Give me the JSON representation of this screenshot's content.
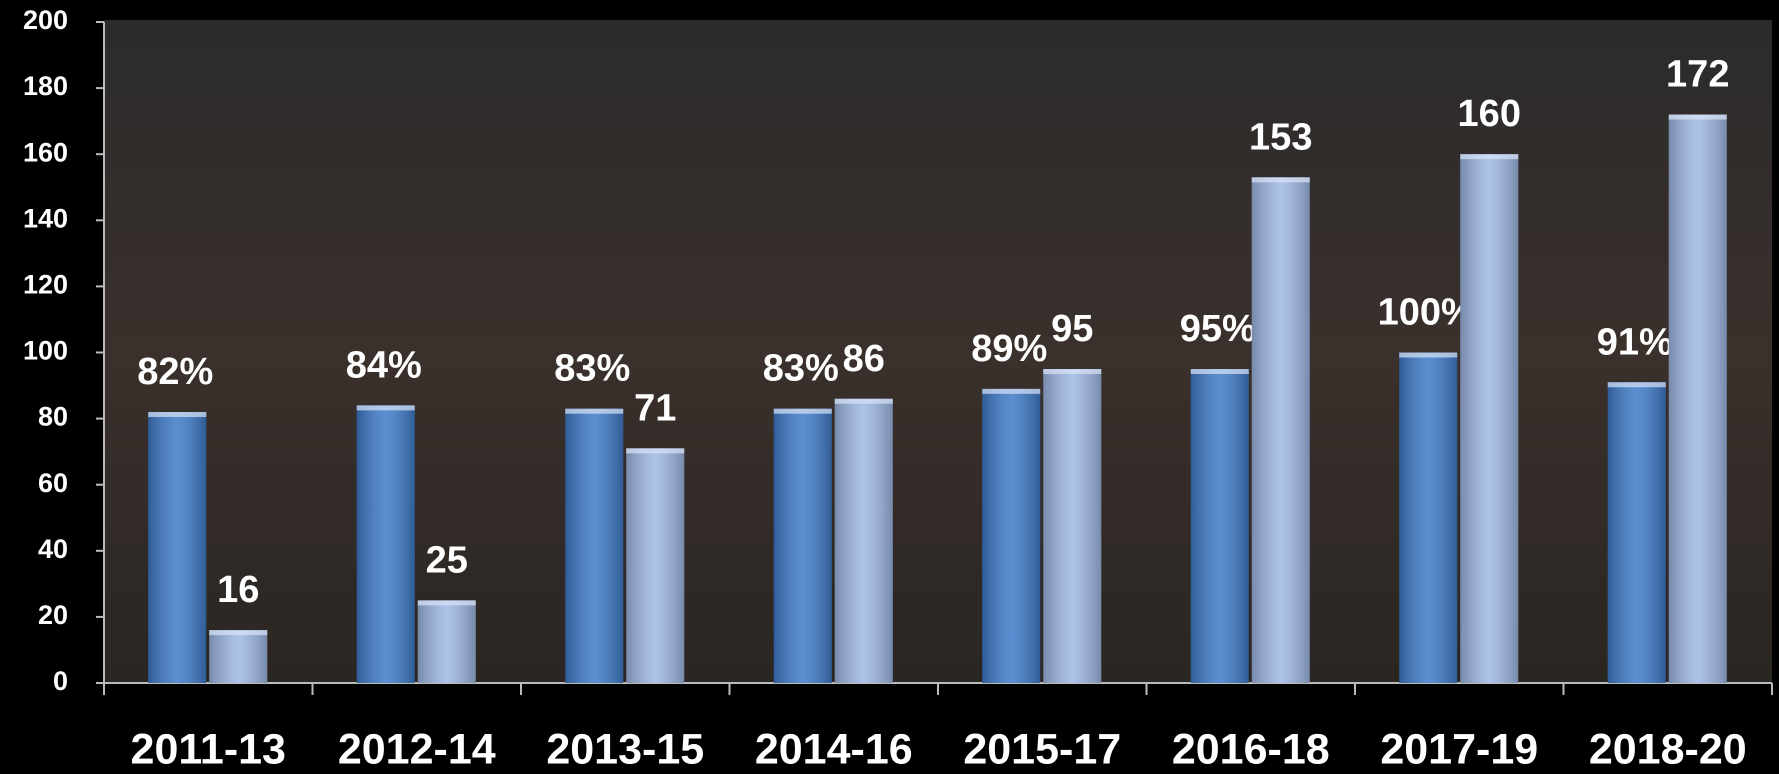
{
  "chart_data": {
    "type": "bar",
    "categories": [
      "2011-13",
      "2012-14",
      "2013-15",
      "2014-16",
      "2015-17",
      "2016-18",
      "2017-19",
      "2018-20"
    ],
    "series": [
      {
        "color": "#3f7bc9",
        "values": [
          82,
          84,
          83,
          83,
          89,
          95,
          100,
          91
        ],
        "value_labels": [
          "82%",
          "84%",
          "83%",
          "83%",
          "89%",
          "95%",
          "100%",
          "91%"
        ]
      },
      {
        "color": "#9fb8e4",
        "values": [
          16,
          25,
          71,
          86,
          95,
          153,
          160,
          172
        ]
      }
    ],
    "ylim": [
      0,
      200
    ],
    "yticks": [
      0,
      20,
      40,
      60,
      80,
      100,
      120,
      140,
      160,
      180,
      200
    ],
    "grid": false
  }
}
